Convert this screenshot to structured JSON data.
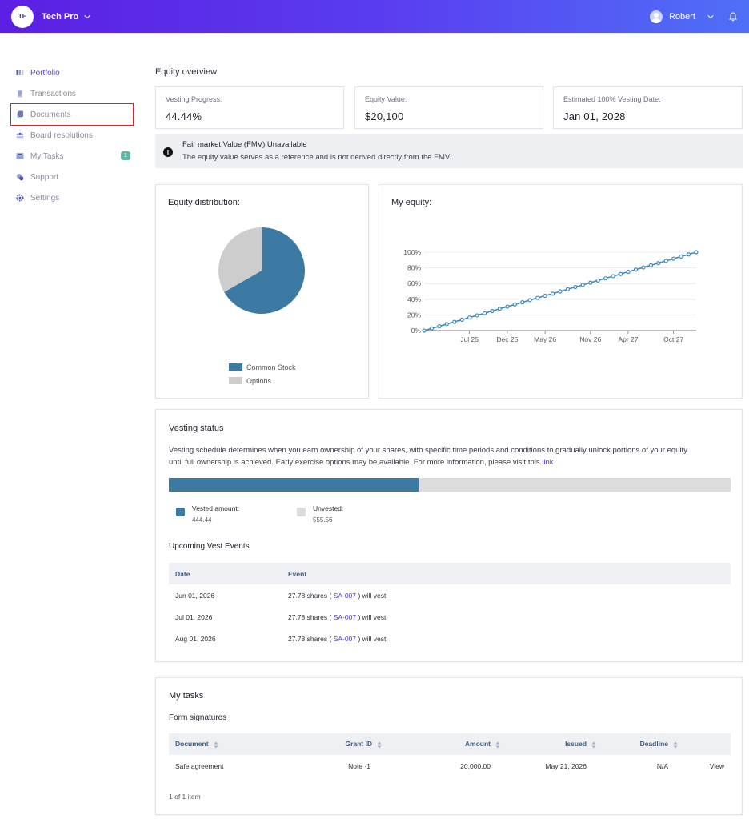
{
  "header": {
    "org_initials": "TE",
    "org_name": "Tech Pro",
    "user_name": "Robert"
  },
  "sidebar": {
    "items": [
      {
        "label": "Portfolio",
        "icon": "portfolio-icon"
      },
      {
        "label": "Transactions",
        "icon": "transactions-icon"
      },
      {
        "label": "Documents",
        "icon": "documents-icon"
      },
      {
        "label": "Board resolutions",
        "icon": "board-icon"
      },
      {
        "label": "My Tasks",
        "icon": "tasks-icon",
        "badge": "1"
      },
      {
        "label": "Support",
        "icon": "support-icon"
      },
      {
        "label": "Settings",
        "icon": "settings-icon"
      }
    ]
  },
  "overview": {
    "title": "Equity overview",
    "stats": [
      {
        "label": "Vesting Progress:",
        "value": "44.44%"
      },
      {
        "label": "Equity Value:",
        "value": "$20,100"
      },
      {
        "label": "Estimated 100% Vesting Date:",
        "value": "Jan 01, 2028"
      }
    ],
    "notice_title": "Fair market Value (FMV) Unavailable",
    "notice_body": "The equity value serves as a reference and is not derived directly from the FMV."
  },
  "distribution": {
    "title": "Equity distribution:",
    "legend": [
      "Common Stock",
      "Options"
    ]
  },
  "my_equity": {
    "title": "My equity:"
  },
  "colors": {
    "accent": "#5a3cf0",
    "common_stock": "#3c7aa4",
    "options": "#cdcdcd",
    "line": "#3c8bbd",
    "vested": "#3c7aa4",
    "unvested": "#dcdcdf"
  },
  "chart_data": [
    {
      "type": "pie",
      "categories": [
        "Common Stock",
        "Options"
      ],
      "values": [
        66.7,
        33.3
      ],
      "title": "Equity distribution:",
      "legend": "bottom"
    },
    {
      "type": "line",
      "title": "My equity:",
      "xlabel": "",
      "ylabel": "",
      "x_ticks": [
        "Jul 25",
        "Dec 25",
        "May 26",
        "Nov 26",
        "Apr 27",
        "Oct 27"
      ],
      "y_ticks": [
        "0%",
        "20%",
        "40%",
        "60%",
        "80%",
        "100%"
      ],
      "ylim": [
        0,
        100
      ],
      "x": [
        "2025-02",
        "2025-03",
        "2025-04",
        "2025-05",
        "2025-06",
        "2025-07",
        "2025-08",
        "2025-09",
        "2025-10",
        "2025-11",
        "2025-12",
        "2026-01",
        "2026-02",
        "2026-03",
        "2026-04",
        "2026-05",
        "2026-06",
        "2026-07",
        "2026-08",
        "2026-09",
        "2026-10",
        "2026-11",
        "2026-12",
        "2027-01",
        "2027-02",
        "2027-03",
        "2027-04",
        "2027-05",
        "2027-06",
        "2027-07",
        "2027-08",
        "2027-09",
        "2027-10",
        "2027-11",
        "2027-12",
        "2028-01"
      ],
      "series": [
        {
          "values": [
            2.78,
            5.56,
            8.33,
            11.11,
            13.89,
            16.67,
            19.44,
            22.22,
            25.0,
            27.78,
            30.56,
            33.33,
            36.11,
            38.89,
            41.67,
            44.44,
            47.22,
            50.0,
            52.78,
            55.56,
            58.33,
            61.11,
            63.89,
            66.67,
            69.44,
            72.22,
            75.0,
            77.78,
            80.56,
            83.33,
            86.11,
            88.89,
            91.67,
            94.44,
            97.22,
            100.0
          ]
        }
      ],
      "grid": true,
      "legend": "none"
    }
  ],
  "vesting": {
    "title": "Vesting status",
    "description_1": "Vesting schedule determines when you earn ownership of your shares, with specific time periods and conditions to gradually unlock portions of your equity",
    "description_2": "until full ownership is achieved. Early exercise options may be available. For more information, please visit this",
    "link_text": "link",
    "progress_fraction": 0.4444,
    "vested_label": "Vested amount:",
    "vested_value": "444.44",
    "unvested_label": "Unvested:",
    "unvested_value": "555.56",
    "events_title": "Upcoming Vest Events",
    "columns": [
      "Date",
      "Event"
    ],
    "events": [
      {
        "date": "Jun 01, 2026",
        "pre": "27.78 shares (",
        "code": "SA-007",
        "post": ") will vest"
      },
      {
        "date": "Jul 01, 2026",
        "pre": "27.78 shares (",
        "code": "SA-007",
        "post": ") will vest"
      },
      {
        "date": "Aug 01, 2026",
        "pre": "27.78 shares (",
        "code": "SA-007",
        "post": ") will vest"
      }
    ]
  },
  "tasks": {
    "title": "My tasks",
    "subtitle": "Form signatures",
    "columns": [
      "Document",
      "Grant ID",
      "Amount",
      "Issued",
      "Deadline"
    ],
    "rows": [
      {
        "document": "Safe agreement",
        "grant_id": "Note -1",
        "amount": "20,000.00",
        "issued": "May 21, 2026",
        "deadline": "N/A",
        "action": "View"
      }
    ],
    "count_text": "1 of 1 item"
  }
}
